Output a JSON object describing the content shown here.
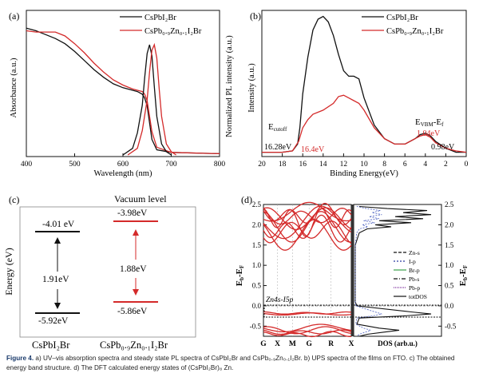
{
  "figure": {
    "caption_label": "Figure 4.",
    "caption_text": "a) UV–vis absorption spectra and steady state PL spectra of CsPbI₂Br and CsPb₀.₉Zn₀.₁I₂Br. b) UPS spectra of the films on FTO. c) The obtained energy band structure. d) The DFT calculated energy states of (CsPbI₂Br)₈ Zn."
  },
  "colors": {
    "pure": "#111111",
    "zn": "#d42a2a",
    "dft": "#d42a2a"
  },
  "panel_a": {
    "tag": "(a)",
    "ylabel_left": "Absorbance (a.u.)",
    "ylabel_right": "Normalized PL intensity (a.u.)",
    "xlabel": "Wavelength (nm)",
    "legend": {
      "pure": "CsPbI₂Br",
      "zn": "CsPb₀.₉Zn₀.₁I₂Br"
    }
  },
  "panel_b": {
    "tag": "(b)",
    "ylabel": "Intensity (a.u.)",
    "xlabel": "Binding Energy(eV)",
    "legend": {
      "pure": "CsPbI₂Br",
      "zn": "CsPb₀.₉Zn₀.₁I₂Br"
    },
    "ecutoff_label": "E",
    "ecutoff_sub": "cutoff",
    "evbm_label": "E",
    "evbm_sub": "VBM",
    "evbm_suffix": "-E",
    "evbm_sub2": "f",
    "cutoff_pure": "16.28eV",
    "cutoff_zn": "16.4eV",
    "vbm_pure": "0.98eV",
    "vbm_zn": "1.04eV"
  },
  "panel_c": {
    "tag": "(c)",
    "ylabel": "Energy (eV)",
    "vacuum_label": "Vacuum level",
    "pure": {
      "cbm": "-4.01 eV",
      "gap": "1.91eV",
      "vbm": "-5.92eV",
      "name": "CsPbI₂Br"
    },
    "zn": {
      "cbm": "-3.98eV",
      "gap": "1.88eV",
      "vbm": "-5.86eV",
      "name": "CsPb₀.₉Zn₀.₁I₂Br"
    }
  },
  "panel_d": {
    "tag": "(d)",
    "ylabel": "E",
    "ylabel_b": "b",
    "ylabel_mid": "-E",
    "ylabel_f": "F",
    "kpoints": [
      "G",
      "X",
      "M",
      "G",
      "R",
      "X"
    ],
    "dos_label": "DOS (arb.u.)",
    "annotation": "Zn4s-I5p",
    "legend": [
      "Zn-s",
      "I-p",
      "Br-p",
      "Pb-s",
      "Pb-p",
      "totDOS"
    ]
  },
  "chart_data": [
    {
      "type": "line",
      "title": "(a) UV-vis absorption and PL",
      "xlabel": "Wavelength (nm)",
      "ylabel": "Absorbance (a.u.)",
      "ylabel2": "Normalized PL intensity (a.u.)",
      "xlim": [
        400,
        800
      ],
      "xticks": [
        400,
        500,
        600,
        700,
        800
      ],
      "series": [
        {
          "name": "CsPbI2Br absorbance",
          "x": [
            400,
            420,
            440,
            460,
            480,
            500,
            520,
            540,
            560,
            580,
            600,
            620,
            630,
            640,
            645,
            650,
            660,
            670,
            700,
            800
          ],
          "y": [
            0.98,
            0.96,
            0.93,
            0.9,
            0.86,
            0.8,
            0.73,
            0.66,
            0.6,
            0.55,
            0.52,
            0.5,
            0.49,
            0.47,
            0.44,
            0.38,
            0.12,
            0.04,
            0.02,
            0.01
          ]
        },
        {
          "name": "CsPb0.9Zn0.1I2Br absorbance",
          "x": [
            400,
            420,
            440,
            460,
            480,
            500,
            520,
            540,
            560,
            580,
            600,
            620,
            630,
            640,
            645,
            650,
            660,
            670,
            700,
            800
          ],
          "y": [
            0.96,
            0.95,
            0.95,
            0.95,
            0.92,
            0.86,
            0.79,
            0.71,
            0.64,
            0.58,
            0.54,
            0.51,
            0.5,
            0.49,
            0.47,
            0.42,
            0.18,
            0.06,
            0.02,
            0.01
          ]
        },
        {
          "name": "CsPbI2Br PL",
          "x": [
            600,
            620,
            630,
            640,
            645,
            650,
            655,
            660,
            665,
            670,
            680,
            690,
            700
          ],
          "y": [
            0,
            0.06,
            0.2,
            0.45,
            0.7,
            0.92,
            1.0,
            0.9,
            0.62,
            0.35,
            0.1,
            0.03,
            0
          ]
        },
        {
          "name": "CsPb0.9Zn0.1I2Br PL",
          "x": [
            610,
            630,
            640,
            650,
            655,
            660,
            665,
            670,
            675,
            680,
            690,
            700,
            710
          ],
          "y": [
            0,
            0.06,
            0.22,
            0.5,
            0.75,
            0.95,
            1.0,
            0.88,
            0.6,
            0.35,
            0.1,
            0.03,
            0
          ]
        }
      ]
    },
    {
      "type": "line",
      "title": "(b) UPS spectra",
      "xlabel": "Binding Energy(eV)",
      "ylabel": "Intensity (a.u.)",
      "xlim": [
        20,
        0
      ],
      "xticks": [
        20,
        18,
        16,
        14,
        12,
        10,
        8,
        6,
        4,
        2,
        0
      ],
      "series": [
        {
          "name": "CsPbI2Br",
          "x": [
            20,
            18,
            17,
            16.5,
            16.28,
            16,
            15.5,
            15,
            14.5,
            14,
            13.5,
            13,
            12.5,
            12,
            11.5,
            11,
            10.5,
            10,
            9,
            8,
            7,
            6,
            5,
            4.5,
            4,
            3.5,
            3,
            2,
            1,
            0.98,
            0
          ],
          "y": [
            0.02,
            0.02,
            0.03,
            0.08,
            0.2,
            0.45,
            0.72,
            0.92,
            1.0,
            1.02,
            0.98,
            0.88,
            0.74,
            0.62,
            0.58,
            0.58,
            0.56,
            0.42,
            0.22,
            0.12,
            0.08,
            0.08,
            0.12,
            0.15,
            0.16,
            0.14,
            0.1,
            0.05,
            0.02,
            0.02,
            0.02
          ]
        },
        {
          "name": "CsPb0.9Zn0.1I2Br",
          "x": [
            20,
            18,
            17,
            16.4,
            16,
            15.5,
            15,
            14,
            13,
            12.5,
            12,
            11.5,
            11,
            10.5,
            10,
            9,
            8,
            7,
            6,
            5,
            4.5,
            4,
            3.5,
            3,
            2,
            1.04,
            0
          ],
          "y": [
            0.02,
            0.02,
            0.03,
            0.1,
            0.2,
            0.26,
            0.3,
            0.33,
            0.38,
            0.43,
            0.44,
            0.42,
            0.4,
            0.38,
            0.33,
            0.2,
            0.12,
            0.08,
            0.08,
            0.12,
            0.14,
            0.15,
            0.13,
            0.09,
            0.05,
            0.03,
            0.02
          ]
        }
      ]
    },
    {
      "type": "diagram",
      "title": "(c) Energy band structure",
      "ylabel": "Energy (eV)",
      "levels": [
        {
          "material": "CsPbI2Br",
          "cbm": -4.01,
          "vbm": -5.92,
          "gap": 1.91
        },
        {
          "material": "CsPb0.9Zn0.1I2Br",
          "cbm": -3.98,
          "vbm": -5.86,
          "gap": 1.88
        }
      ]
    },
    {
      "type": "line",
      "title": "(d) DFT band structure and DOS",
      "ylabel": "Eb-EF",
      "ylim": [
        -0.75,
        2.5
      ],
      "yticks": [
        2.5,
        2.0,
        1.5,
        1.0,
        0.5,
        0.0,
        -0.5
      ],
      "kpoints": [
        "G",
        "X",
        "M",
        "G",
        "R",
        "X"
      ],
      "xlabel_dos": "DOS (arb.u.)",
      "legend": [
        "Zn-s",
        "I-p",
        "Br-p",
        "Pb-s",
        "Pb-p",
        "totDOS"
      ],
      "annotation": "Zn4s-I5p"
    }
  ]
}
